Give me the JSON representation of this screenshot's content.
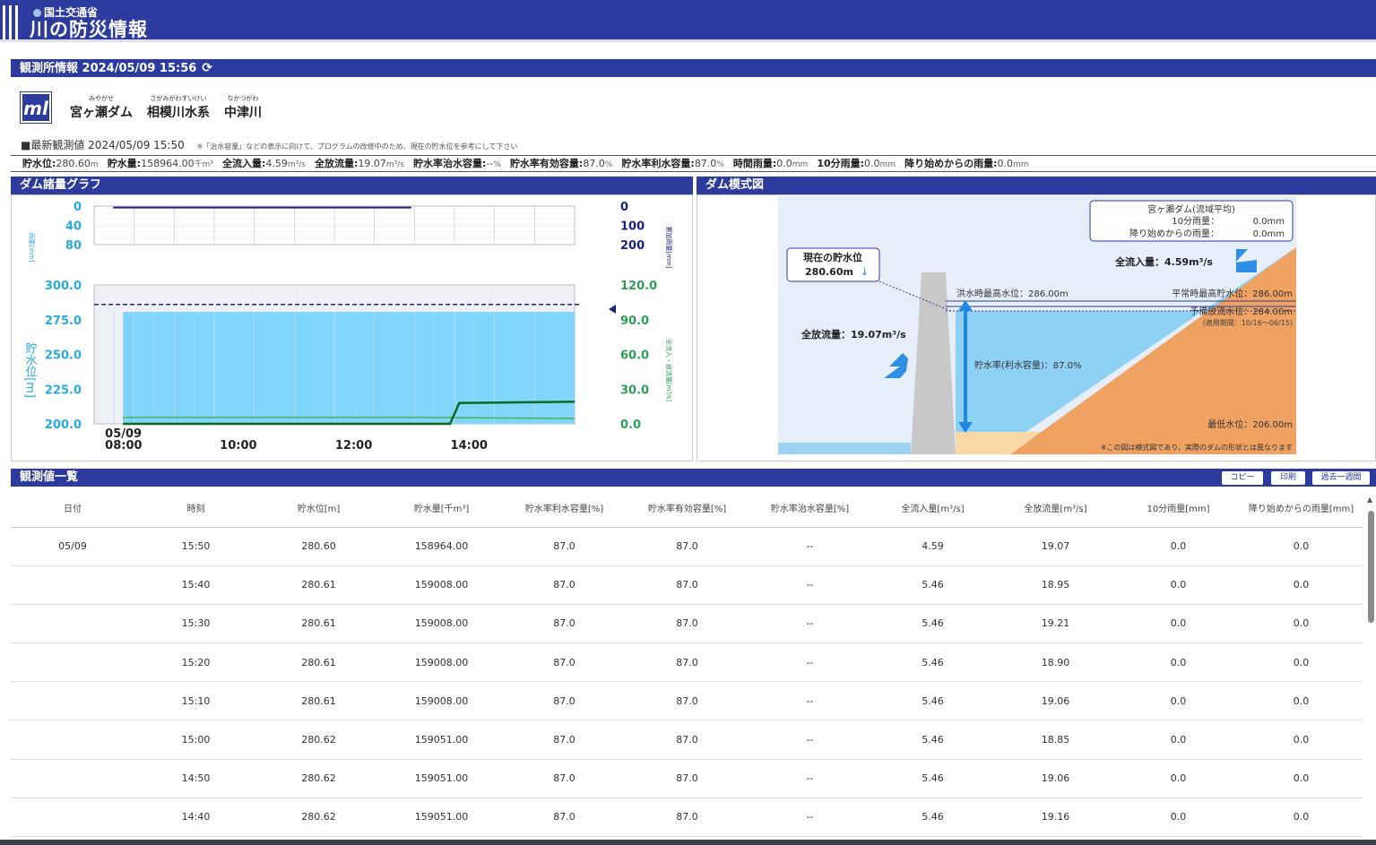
{
  "header": {
    "ministry": "国土交通省",
    "title": "川の防災情報"
  },
  "station_section": {
    "title": "観測所情報 2024/05/09 15:56",
    "refresh_icon": "refresh-icon"
  },
  "station": {
    "logo_text": "ml",
    "dam_ruby": "みやがせ",
    "dam": "宮ヶ瀬ダム",
    "system_ruby": "さがみがわすいけい",
    "system": "相模川水系",
    "river_ruby": "なかつがわ",
    "river": "中津川"
  },
  "latest": {
    "label": "■最新観測値",
    "time": "2024/05/09 15:50",
    "note": "※「治水容量」などの表示に向けて、プログラムの改修中のため、現在の貯水位を参考にして下さい"
  },
  "metrics": [
    {
      "label": "貯水位:",
      "value": "280.60",
      "unit": "m"
    },
    {
      "label": "貯水量:",
      "value": "158964.00",
      "unit": "千m³"
    },
    {
      "label": "全流入量:",
      "value": "4.59",
      "unit": "m³/s"
    },
    {
      "label": "全放流量:",
      "value": "19.07",
      "unit": "m³/s"
    },
    {
      "label": "貯水率治水容量:",
      "value": "--",
      "unit": "%"
    },
    {
      "label": "貯水率有効容量:",
      "value": "87.0",
      "unit": "%"
    },
    {
      "label": "貯水率利水容量:",
      "value": "87.0",
      "unit": "%"
    },
    {
      "label": "時間雨量:",
      "value": "0.0",
      "unit": "mm"
    },
    {
      "label": "10分雨量:",
      "value": "0.0",
      "unit": "mm"
    },
    {
      "label": "降り始めからの雨量:",
      "value": "0.0",
      "unit": "mm"
    }
  ],
  "graph_section": {
    "title": "ダム諸量グラフ"
  },
  "diagram_section": {
    "title": "ダム模式図"
  },
  "chart_data": [
    {
      "type": "line",
      "name": "rain-panel",
      "ylim": [
        0,
        80
      ],
      "ylabel": "雨量[mm]",
      "y_ticks": [
        "0",
        "40",
        "80"
      ],
      "y2lim": [
        0,
        200
      ],
      "y2label": "累加雨量[mm]",
      "y2_ticks": [
        "0",
        "100",
        "200"
      ],
      "x_range_hours": [
        7.5,
        15.83
      ],
      "series": [
        {
          "points": [
            [
              7.83,
              3
            ],
            [
              13.0,
              3
            ]
          ],
          "color": "#1a237e"
        }
      ]
    },
    {
      "type": "line",
      "name": "water-level-panel",
      "ylabel": "貯水位[m]",
      "ylim": [
        200,
        300
      ],
      "y_ticks": [
        "300.0",
        "275.0",
        "250.0",
        "225.0",
        "200.0"
      ],
      "y2label": "全流入・放流量[m³/s]",
      "y2lim": [
        0,
        120
      ],
      "y2_ticks": [
        "120.0",
        "90.0",
        "60.0",
        "30.0",
        "0.0"
      ],
      "x_ticks": [
        {
          "label": "05/09",
          "label2": "08:00",
          "h": 8
        },
        {
          "label": "10:00",
          "h": 10
        },
        {
          "label": "12:00",
          "h": 12
        },
        {
          "label": "14:00",
          "h": 14
        }
      ],
      "x_range_hours": [
        7.5,
        15.83
      ],
      "flood_level": 286.0,
      "series": [
        {
          "name": "貯水位",
          "color": "#81d4fa",
          "x_start": 8.0,
          "x_end": 15.83,
          "value": 280.6
        },
        {
          "name": "全放流量",
          "color": "#0a6b1e",
          "points": [
            [
              8.0,
              0
            ],
            [
              13.67,
              0
            ],
            [
              13.83,
              18
            ],
            [
              15.83,
              19.07
            ]
          ]
        },
        {
          "name": "全流入量",
          "color": "#4caf50",
          "points": [
            [
              8.0,
              5.5
            ],
            [
              13.2,
              5.5
            ],
            [
              13.5,
              5.46
            ],
            [
              15.83,
              4.59
            ]
          ]
        }
      ]
    }
  ],
  "diagram": {
    "rain_box": {
      "title": "宮ヶ瀬ダム(流域平均)",
      "rain10_label": "10分雨量：",
      "rain10_value": "0.0mm",
      "total_label": "降り始めからの雨量：",
      "total_value": "0.0mm"
    },
    "inflow": "全流入量：4.59m³/s",
    "current_label": "現在の貯水位",
    "current_value": "280.60m",
    "outflow": "全放流量：19.07m³/s",
    "flood_max": "洪水時最高水位：286.00m",
    "normal_max": "平常時最高貯水位：286.00m",
    "preliminary": "予備放流水位：284.00m",
    "preliminary_period": "(適用期間：10/16～06/15)",
    "storage_rate": "貯水率(利水容量)：87.0%",
    "min_level": "最低水位：206.00m",
    "footnote": "※この図は模式図であり、実際のダムの形状とは異なります"
  },
  "table_section": {
    "title": "観測値一覧",
    "copy": "コピー",
    "print": "印刷",
    "past_week": "過去一週間"
  },
  "table": {
    "headers": [
      "日付",
      "時刻",
      "貯水位[m]",
      "貯水量[千m³]",
      "貯水率利水容量[%]",
      "貯水率有効容量[%]",
      "貯水率治水容量[%]",
      "全流入量[m³/s]",
      "全放流量[m³/s]",
      "10分雨量[mm]",
      "降り始めからの雨量[mm]"
    ],
    "rows": [
      [
        "05/09",
        "15:50",
        "280.60",
        "158964.00",
        "87.0",
        "87.0",
        "--",
        "4.59",
        "19.07",
        "0.0",
        "0.0"
      ],
      [
        "",
        "15:40",
        "280.61",
        "159008.00",
        "87.0",
        "87.0",
        "--",
        "5.46",
        "18.95",
        "0.0",
        "0.0"
      ],
      [
        "",
        "15:30",
        "280.61",
        "159008.00",
        "87.0",
        "87.0",
        "--",
        "5.46",
        "19.21",
        "0.0",
        "0.0"
      ],
      [
        "",
        "15:20",
        "280.61",
        "159008.00",
        "87.0",
        "87.0",
        "--",
        "5.46",
        "18.90",
        "0.0",
        "0.0"
      ],
      [
        "",
        "15:10",
        "280.61",
        "159008.00",
        "87.0",
        "87.0",
        "--",
        "5.46",
        "19.06",
        "0.0",
        "0.0"
      ],
      [
        "",
        "15:00",
        "280.62",
        "159051.00",
        "87.0",
        "87.0",
        "--",
        "5.46",
        "18.85",
        "0.0",
        "0.0"
      ],
      [
        "",
        "14:50",
        "280.62",
        "159051.00",
        "87.0",
        "87.0",
        "--",
        "5.46",
        "19.06",
        "0.0",
        "0.0"
      ],
      [
        "",
        "14:40",
        "280.62",
        "159051.00",
        "87.0",
        "87.0",
        "--",
        "5.46",
        "19.16",
        "0.0",
        "0.0"
      ]
    ]
  }
}
